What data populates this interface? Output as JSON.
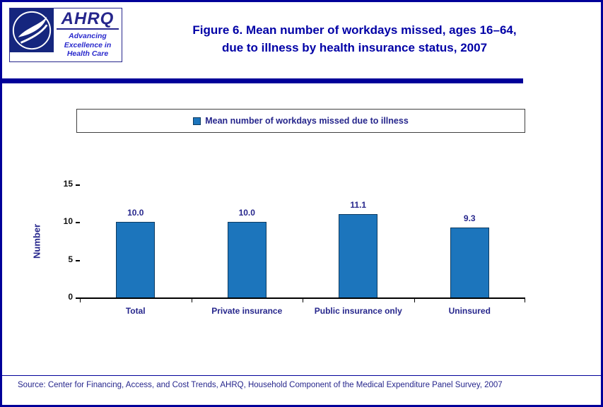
{
  "header": {
    "logo": {
      "hhs_seal_name": "hhs-seal",
      "ahrq_acronym": "AHRQ",
      "tagline_line1": "Advancing",
      "tagline_line2": "Excellence in",
      "tagline_line3": "Health Care"
    },
    "title_line1": "Figure 6. Mean number of workdays missed, ages 16–64,",
    "title_line2": "due to illness by health insurance status, 2007"
  },
  "legend": {
    "marker_icon": "blue-square-marker",
    "label": "Mean number of workdays missed due to illness"
  },
  "chart_data": {
    "type": "bar",
    "categories": [
      "Total",
      "Private insurance",
      "Public insurance only",
      "Uninsured"
    ],
    "values": [
      10.0,
      10.0,
      11.1,
      9.3
    ],
    "value_labels": [
      "10.0",
      "10.0",
      "11.1",
      "9.3"
    ],
    "title": "Figure 6. Mean number of workdays missed, ages 16–64, due to illness by health insurance status, 2007",
    "xlabel": "",
    "ylabel": "Number",
    "ylim": [
      0,
      15
    ],
    "yticks": [
      0,
      5,
      10,
      15
    ],
    "legend": [
      "Mean number of workdays missed due to illness"
    ],
    "legend_position": "top",
    "grid": false,
    "bar_color": "#1C75BC",
    "bar_border_color": "#0D3B61"
  },
  "footer": {
    "source": "Source: Center for Financing, Access, and Cost Trends, AHRQ, Household Component of the Medical Expenditure Panel Survey, 2007"
  },
  "colors": {
    "page_border": "#000099",
    "title_text": "#0000A6",
    "chart_text": "#26268C",
    "bar_fill": "#1C75BC",
    "axis": "#000000"
  }
}
